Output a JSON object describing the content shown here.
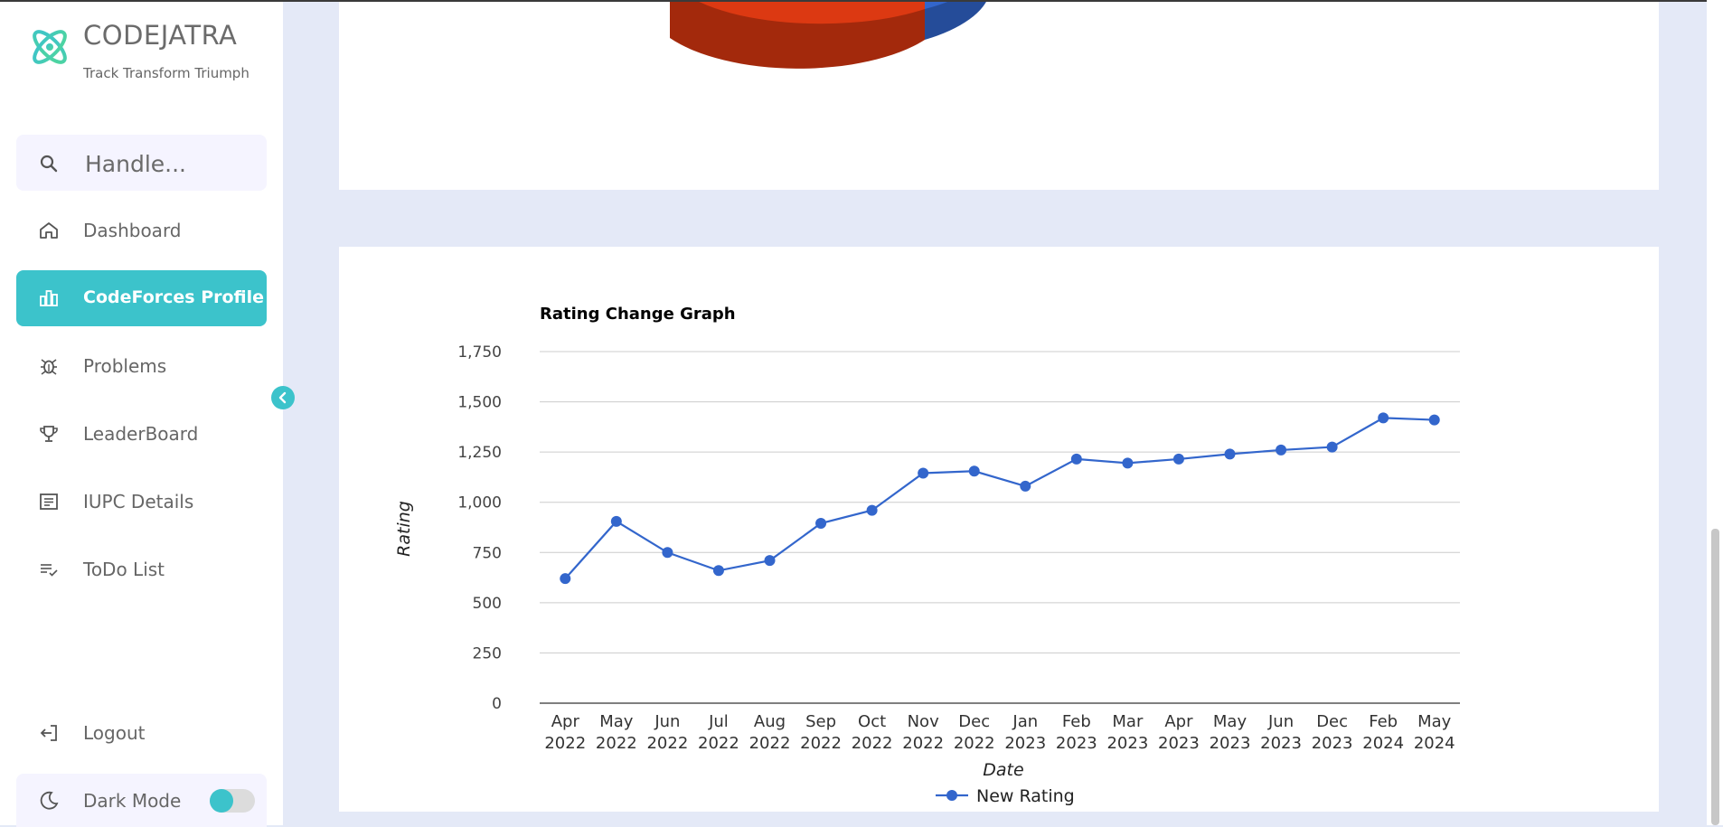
{
  "brand": {
    "name": "CODEJATRA",
    "tagline": "Track Transform Triumph"
  },
  "search": {
    "placeholder": "Handle..."
  },
  "nav": {
    "items": [
      {
        "label": "Dashboard",
        "icon": "home-icon"
      },
      {
        "label": "CodeForces Profile",
        "icon": "bar-chart-icon",
        "active": true
      },
      {
        "label": "Problems",
        "icon": "bug-icon"
      },
      {
        "label": "LeaderBoard",
        "icon": "trophy-icon"
      },
      {
        "label": "IUPC Details",
        "icon": "document-icon"
      },
      {
        "label": "ToDo List",
        "icon": "checklist-icon"
      }
    ],
    "logout": "Logout",
    "dark_mode": "Dark Mode",
    "dark_mode_on": false
  },
  "colors": {
    "accent": "#3cc3cb",
    "series": "#3366cc",
    "pie_red": "#dc3912",
    "pie_blue": "#3366cc"
  },
  "chart_data": {
    "type": "line",
    "title": "Rating Change Graph",
    "xlabel": "Date",
    "ylabel": "Rating",
    "ylim": [
      0,
      1750
    ],
    "yticks": [
      0,
      250,
      500,
      750,
      1000,
      1250,
      1500,
      1750
    ],
    "ytick_labels": [
      "0",
      "250",
      "500",
      "750",
      "1,000",
      "1,250",
      "1,500",
      "1,750"
    ],
    "categories": [
      [
        "Apr",
        "2022"
      ],
      [
        "May",
        "2022"
      ],
      [
        "Jun",
        "2022"
      ],
      [
        "Jul",
        "2022"
      ],
      [
        "Aug",
        "2022"
      ],
      [
        "Sep",
        "2022"
      ],
      [
        "Oct",
        "2022"
      ],
      [
        "Nov",
        "2022"
      ],
      [
        "Dec",
        "2022"
      ],
      [
        "Jan",
        "2023"
      ],
      [
        "Feb",
        "2023"
      ],
      [
        "Mar",
        "2023"
      ],
      [
        "Apr",
        "2023"
      ],
      [
        "May",
        "2023"
      ],
      [
        "Jun",
        "2023"
      ],
      [
        "Dec",
        "2023"
      ],
      [
        "Feb",
        "2024"
      ],
      [
        "May",
        "2024"
      ]
    ],
    "series": [
      {
        "name": "New Rating",
        "values": [
          620,
          905,
          750,
          660,
          710,
          895,
          960,
          1145,
          1155,
          1080,
          1215,
          1195,
          1215,
          1240,
          1260,
          1275,
          1420,
          1410
        ]
      }
    ],
    "grid": true,
    "legend": "bottom"
  }
}
